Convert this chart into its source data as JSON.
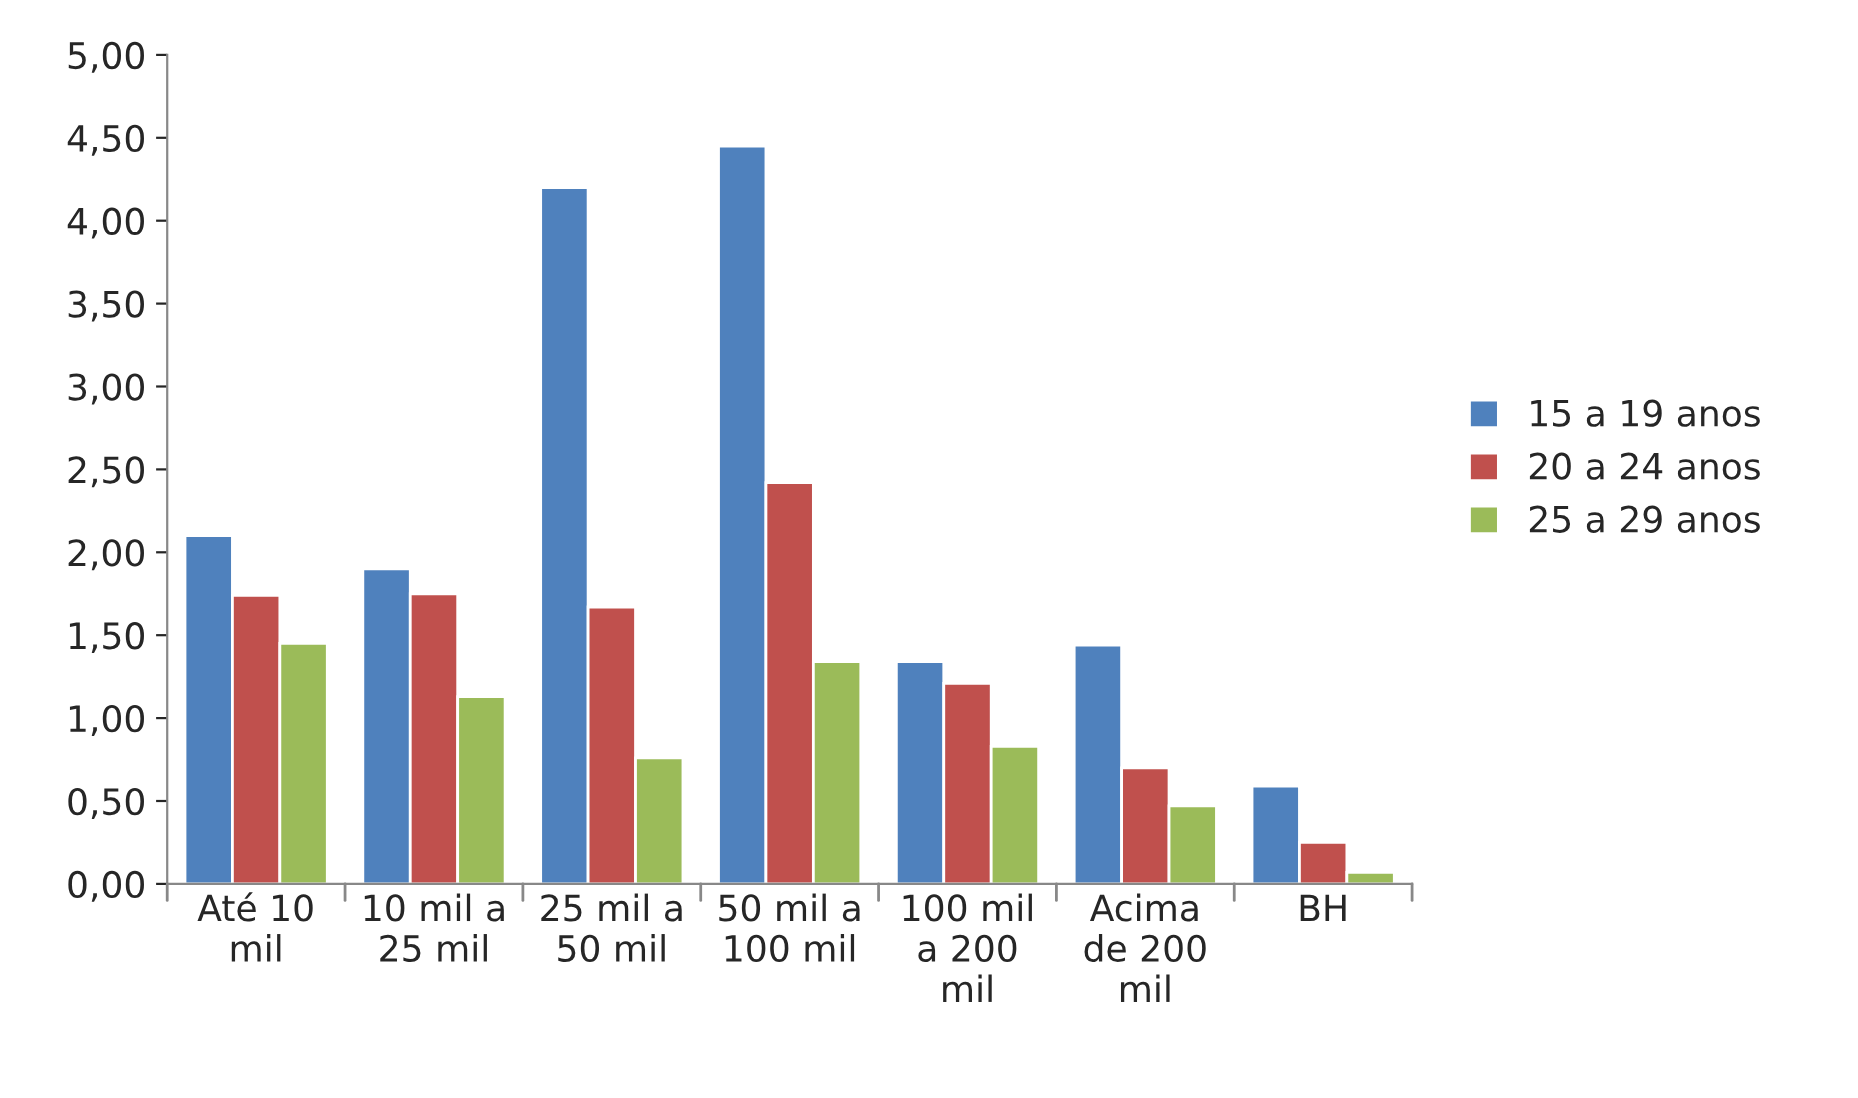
{
  "chart_data": {
    "type": "bar",
    "categories": [
      "Até 10\nmil",
      "10 mil a\n25 mil",
      "25 mil a\n50 mil",
      "50 mil a\n100 mil",
      "100 mil\na 200\nmil",
      "Acima\nde 200\nmil",
      "BH"
    ],
    "series": [
      {
        "name": "15 a 19 anos",
        "color": "#4f81bd",
        "values": [
          2.1,
          1.9,
          4.2,
          4.45,
          1.34,
          1.44,
          0.59
        ]
      },
      {
        "name": "20 a 24 anos",
        "color": "#c0504d",
        "values": [
          1.74,
          1.75,
          1.67,
          2.42,
          1.21,
          0.7,
          0.25
        ]
      },
      {
        "name": "25 a 29 anos",
        "color": "#9bbb59",
        "values": [
          1.45,
          1.13,
          0.76,
          1.34,
          0.83,
          0.47,
          0.07
        ]
      }
    ],
    "ylim": [
      0,
      5
    ],
    "yticks": [
      {
        "value": 0,
        "label": "0,00"
      },
      {
        "value": 0.5,
        "label": "0,50"
      },
      {
        "value": 1,
        "label": "1,00"
      },
      {
        "value": 1.5,
        "label": "1,50"
      },
      {
        "value": 2,
        "label": "2,00"
      },
      {
        "value": 2.5,
        "label": "2,50"
      },
      {
        "value": 3,
        "label": "3,00"
      },
      {
        "value": 3.5,
        "label": "3,50"
      },
      {
        "value": 4,
        "label": "4,00"
      },
      {
        "value": 4.5,
        "label": "4,50"
      },
      {
        "value": 5,
        "label": "5,00"
      }
    ],
    "grid": false,
    "legend": "right"
  }
}
